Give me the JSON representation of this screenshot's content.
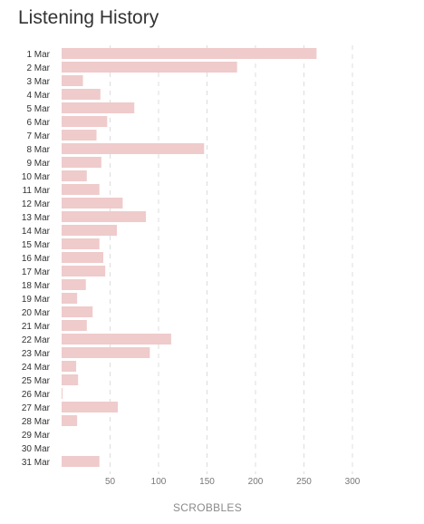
{
  "page": {
    "title": "Listening History"
  },
  "chart_data": {
    "type": "bar",
    "orientation": "horizontal",
    "title": "Listening History",
    "xlabel": "SCROBBLES",
    "ylabel": "",
    "xlim": [
      0,
      300
    ],
    "xticks": [
      50,
      100,
      150,
      200,
      250,
      300
    ],
    "grid": "vertical dashed",
    "bar_color": "#efcbcb",
    "categories": [
      "1 Mar",
      "2 Mar",
      "3 Mar",
      "4 Mar",
      "5 Mar",
      "6 Mar",
      "7 Mar",
      "8 Mar",
      "9 Mar",
      "10 Mar",
      "11 Mar",
      "12 Mar",
      "13 Mar",
      "14 Mar",
      "15 Mar",
      "16 Mar",
      "17 Mar",
      "18 Mar",
      "19 Mar",
      "20 Mar",
      "21 Mar",
      "22 Mar",
      "23 Mar",
      "24 Mar",
      "25 Mar",
      "26 Mar",
      "27 Mar",
      "28 Mar",
      "29 Mar",
      "30 Mar",
      "31 Mar"
    ],
    "values": [
      263,
      181,
      22,
      40,
      75,
      47,
      36,
      147,
      41,
      26,
      39,
      63,
      87,
      57,
      39,
      43,
      45,
      25,
      16,
      32,
      26,
      113,
      91,
      15,
      17,
      1,
      58,
      16,
      0,
      0,
      39
    ]
  }
}
